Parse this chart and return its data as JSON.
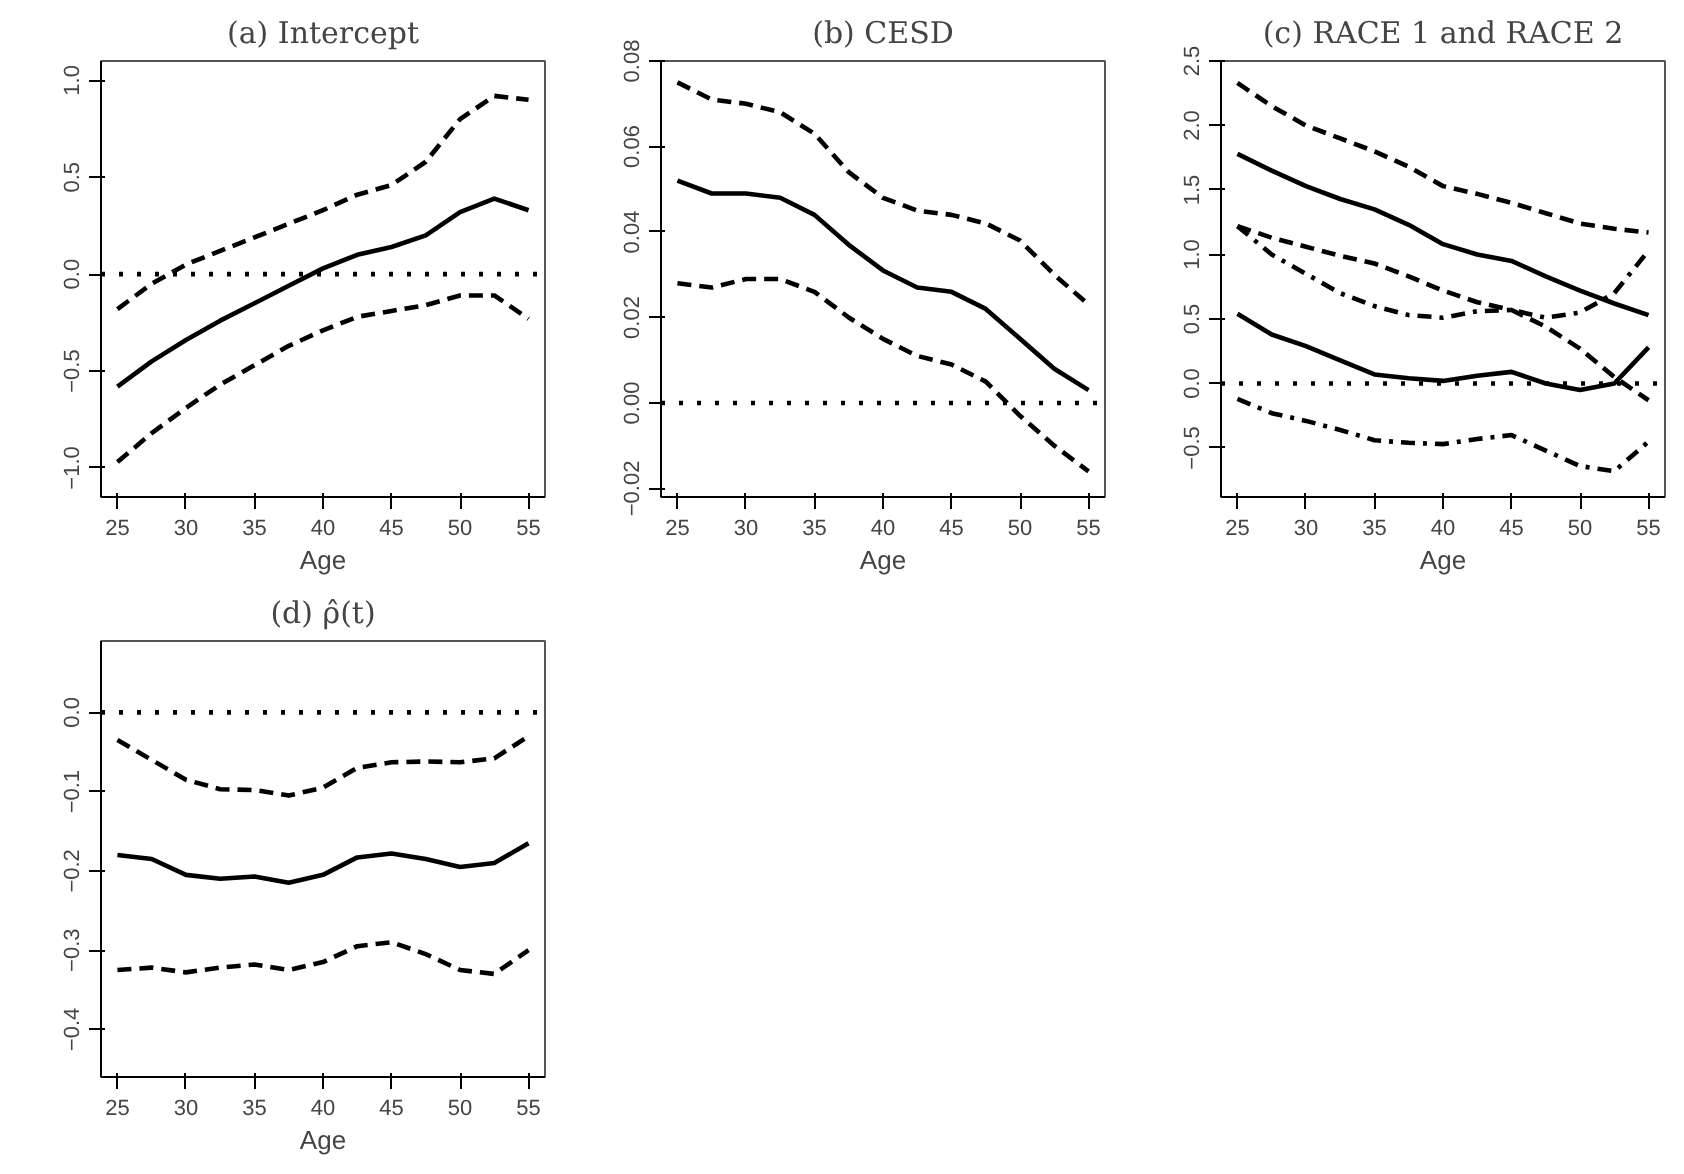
{
  "chart_data": [
    {
      "type": "line",
      "title": "(a) Intercept",
      "xlabel": "Age",
      "x": [
        25,
        27.5,
        30,
        32.5,
        35,
        37.5,
        40,
        42.5,
        45,
        47.5,
        50,
        52.5,
        55
      ],
      "xlim": [
        23.8,
        56.2
      ],
      "xticks": [
        25,
        30,
        35,
        40,
        45,
        50,
        55
      ],
      "ylim": [
        -1.15,
        1.1
      ],
      "yticks": [
        {
          "value": -1,
          "label": "−1.0"
        },
        {
          "value": -0.5,
          "label": "−0.5"
        },
        {
          "value": 0,
          "label": "0.0"
        },
        {
          "value": 0.5,
          "label": "0.5"
        },
        {
          "value": 1,
          "label": "1.0"
        }
      ],
      "series": [
        {
          "color": "#000000",
          "line_style": "solid",
          "values": [
            -0.58,
            -0.45,
            -0.34,
            -0.24,
            -0.15,
            -0.06,
            0.03,
            0.1,
            0.14,
            0.2,
            0.32,
            0.39,
            0.33
          ]
        },
        {
          "color": "#000000",
          "line_style": "dashed",
          "values": [
            -0.18,
            -0.05,
            0.05,
            0.12,
            0.19,
            0.26,
            0.33,
            0.41,
            0.46,
            0.58,
            0.8,
            0.92,
            0.9
          ]
        },
        {
          "color": "#000000",
          "line_style": "dashed",
          "values": [
            -0.97,
            -0.82,
            -0.69,
            -0.57,
            -0.47,
            -0.37,
            -0.29,
            -0.22,
            -0.19,
            -0.16,
            -0.11,
            -0.11,
            -0.23
          ]
        }
      ],
      "ref_lines": [
        {
          "axis": "y",
          "value": 0,
          "line_style": "dotted",
          "color": "#000000"
        }
      ]
    },
    {
      "type": "line",
      "title": "(b) CESD",
      "xlabel": "Age",
      "x": [
        25,
        27.5,
        30,
        32.5,
        35,
        37.5,
        40,
        42.5,
        45,
        47.5,
        50,
        52.5,
        55
      ],
      "xlim": [
        23.8,
        56.2
      ],
      "xticks": [
        25,
        30,
        35,
        40,
        45,
        50,
        55
      ],
      "ylim": [
        -0.022,
        0.08
      ],
      "yticks": [
        {
          "value": -0.02,
          "label": "−0.02"
        },
        {
          "value": 0,
          "label": "0.00"
        },
        {
          "value": 0.02,
          "label": "0.02"
        },
        {
          "value": 0.04,
          "label": "0.04"
        },
        {
          "value": 0.06,
          "label": "0.06"
        },
        {
          "value": 0.08,
          "label": "0.08"
        }
      ],
      "series": [
        {
          "color": "#000000",
          "line_style": "solid",
          "values": [
            0.052,
            0.049,
            0.049,
            0.048,
            0.044,
            0.037,
            0.031,
            0.027,
            0.026,
            0.022,
            0.015,
            0.008,
            0.003
          ]
        },
        {
          "color": "#000000",
          "line_style": "dashed",
          "values": [
            0.075,
            0.071,
            0.07,
            0.068,
            0.063,
            0.054,
            0.048,
            0.045,
            0.044,
            0.042,
            0.038,
            0.03,
            0.023
          ]
        },
        {
          "color": "#000000",
          "line_style": "dashed",
          "values": [
            0.028,
            0.027,
            0.029,
            0.029,
            0.026,
            0.02,
            0.015,
            0.011,
            0.009,
            0.005,
            -0.003,
            -0.01,
            -0.016
          ]
        }
      ],
      "ref_lines": [
        {
          "axis": "y",
          "value": 0,
          "line_style": "dotted",
          "color": "#000000"
        }
      ]
    },
    {
      "type": "line",
      "title": "(c) RACE 1 and RACE 2",
      "xlabel": "Age",
      "x": [
        25,
        27.5,
        30,
        32.5,
        35,
        37.5,
        40,
        42.5,
        45,
        47.5,
        50,
        52.5,
        55
      ],
      "xlim": [
        23.8,
        56.2
      ],
      "xticks": [
        25,
        30,
        35,
        40,
        45,
        50,
        55
      ],
      "ylim": [
        -0.88,
        2.5
      ],
      "yticks": [
        {
          "value": -0.5,
          "label": "−0.5"
        },
        {
          "value": 0,
          "label": "0.0"
        },
        {
          "value": 0.5,
          "label": "0.5"
        },
        {
          "value": 1,
          "label": "1.0"
        },
        {
          "value": 1.5,
          "label": "1.5"
        },
        {
          "value": 2,
          "label": "2.0"
        },
        {
          "value": 2.5,
          "label": "2.5"
        }
      ],
      "series": [
        {
          "color": "#000000",
          "line_style": "solid",
          "values": [
            1.78,
            1.65,
            1.53,
            1.43,
            1.35,
            1.23,
            1.08,
            1.0,
            0.95,
            0.83,
            0.72,
            0.62,
            0.53
          ]
        },
        {
          "color": "#000000",
          "line_style": "dashed",
          "values": [
            2.33,
            2.15,
            2.0,
            1.9,
            1.8,
            1.68,
            1.53,
            1.47,
            1.4,
            1.32,
            1.24,
            1.2,
            1.17
          ]
        },
        {
          "color": "#000000",
          "line_style": "dashed",
          "values": [
            1.22,
            1.13,
            1.06,
            0.99,
            0.93,
            0.83,
            0.72,
            0.63,
            0.57,
            0.44,
            0.27,
            0.05,
            -0.13
          ]
        },
        {
          "color": "#000000",
          "line_style": "solid",
          "values": [
            0.54,
            0.38,
            0.29,
            0.18,
            0.07,
            0.04,
            0.02,
            0.06,
            0.09,
            0.0,
            -0.05,
            0.0,
            0.28
          ]
        },
        {
          "color": "#000000",
          "line_style": "dashdot",
          "values": [
            1.22,
            1.0,
            0.85,
            0.7,
            0.6,
            0.53,
            0.51,
            0.56,
            0.57,
            0.51,
            0.55,
            0.7,
            1.03
          ]
        },
        {
          "color": "#000000",
          "line_style": "dashdot",
          "values": [
            -0.12,
            -0.23,
            -0.29,
            -0.36,
            -0.44,
            -0.46,
            -0.47,
            -0.43,
            -0.4,
            -0.52,
            -0.64,
            -0.68,
            -0.45
          ]
        }
      ],
      "ref_lines": [
        {
          "axis": "y",
          "value": 0,
          "line_style": "dotted",
          "color": "#000000"
        }
      ]
    },
    {
      "type": "line",
      "title": "(d) ρ̂(t)",
      "xlabel": "Age",
      "x": [
        25,
        27.5,
        30,
        32.5,
        35,
        37.5,
        40,
        42.5,
        45,
        47.5,
        50,
        52.5,
        55
      ],
      "xlim": [
        23.8,
        56.2
      ],
      "xticks": [
        25,
        30,
        35,
        40,
        45,
        50,
        55
      ],
      "ylim": [
        -0.46,
        0.09
      ],
      "yticks": [
        {
          "value": -0.4,
          "label": "−0.4"
        },
        {
          "value": -0.3,
          "label": "−0.3"
        },
        {
          "value": -0.2,
          "label": "−0.2"
        },
        {
          "value": -0.1,
          "label": "−0.1"
        },
        {
          "value": 0,
          "label": "0.0"
        }
      ],
      "series": [
        {
          "color": "#000000",
          "line_style": "solid",
          "values": [
            -0.18,
            -0.185,
            -0.205,
            -0.21,
            -0.207,
            -0.215,
            -0.205,
            -0.183,
            -0.178,
            -0.185,
            -0.195,
            -0.19,
            -0.165
          ]
        },
        {
          "color": "#000000",
          "line_style": "dashed",
          "values": [
            -0.035,
            -0.06,
            -0.085,
            -0.097,
            -0.098,
            -0.105,
            -0.095,
            -0.07,
            -0.063,
            -0.062,
            -0.063,
            -0.058,
            -0.03
          ]
        },
        {
          "color": "#000000",
          "line_style": "dashed",
          "values": [
            -0.325,
            -0.322,
            -0.328,
            -0.322,
            -0.318,
            -0.325,
            -0.315,
            -0.295,
            -0.29,
            -0.305,
            -0.325,
            -0.33,
            -0.3
          ]
        }
      ],
      "ref_lines": [
        {
          "axis": "y",
          "value": 0,
          "line_style": "dotted",
          "color": "#000000"
        }
      ]
    }
  ]
}
